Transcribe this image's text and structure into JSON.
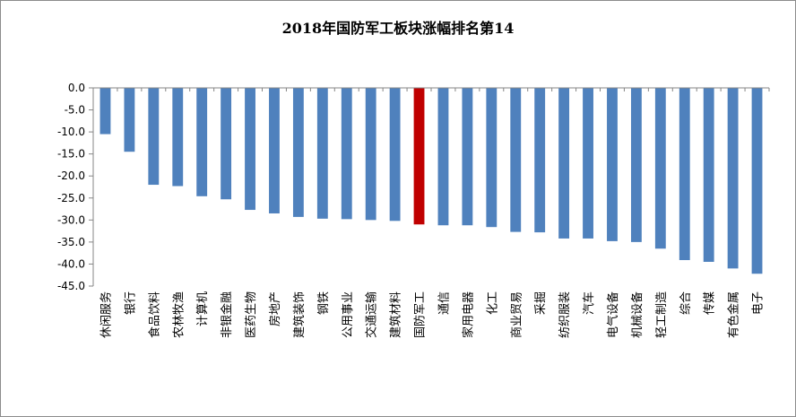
{
  "chart_data": {
    "type": "bar",
    "title": "2018年国防军工板块涨幅排名第14",
    "xlabel": "",
    "ylabel": "",
    "ylim": [
      -45,
      0
    ],
    "ytick_step": 5,
    "grid": false,
    "legend": "none",
    "colors": {
      "default": "#4f81bd",
      "highlight": "#c00000"
    },
    "highlight_category": "国防军工",
    "categories": [
      "休闲服务",
      "银行",
      "食品饮料",
      "农林牧渔",
      "计算机",
      "非银金融",
      "医药生物",
      "房地产",
      "建筑装饰",
      "钢铁",
      "公用事业",
      "交通运输",
      "建筑材料",
      "国防军工",
      "通信",
      "家用电器",
      "化工",
      "商业贸易",
      "采掘",
      "纺织服装",
      "汽车",
      "电气设备",
      "机械设备",
      "轻工制造",
      "综合",
      "传媒",
      "有色金属",
      "电子"
    ],
    "values": [
      -10.5,
      -14.5,
      -22.0,
      -22.3,
      -24.6,
      -25.3,
      -27.7,
      -28.5,
      -29.3,
      -29.7,
      -29.8,
      -30.0,
      -30.2,
      -31.0,
      -31.2,
      -31.2,
      -31.6,
      -32.7,
      -32.8,
      -34.2,
      -34.2,
      -34.8,
      -35.0,
      -36.5,
      -39.1,
      -39.5,
      -41.0,
      -42.2
    ]
  }
}
